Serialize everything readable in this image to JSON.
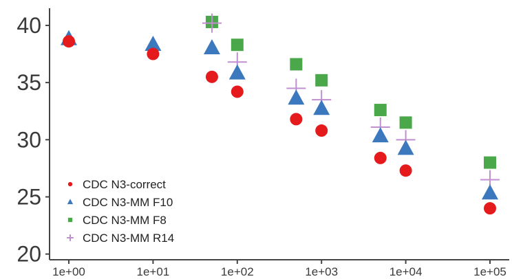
{
  "chart_data": {
    "type": "scatter",
    "x_scale": "log10",
    "xlim": [
      1,
      100000
    ],
    "ylim": [
      19.5,
      41.5
    ],
    "x_ticks": [
      {
        "value": 1,
        "label": "1e+00"
      },
      {
        "value": 10,
        "label": "1e+01"
      },
      {
        "value": 100,
        "label": "1e+02"
      },
      {
        "value": 1000,
        "label": "1e+03"
      },
      {
        "value": 10000,
        "label": "1e+04"
      },
      {
        "value": 100000,
        "label": "1e+05"
      }
    ],
    "y_ticks": [
      {
        "value": 20,
        "label": "20"
      },
      {
        "value": 25,
        "label": "25"
      },
      {
        "value": 30,
        "label": "30"
      },
      {
        "value": 35,
        "label": "35"
      },
      {
        "value": 40,
        "label": "40"
      }
    ],
    "grid": false,
    "legend_position": "bottom-left",
    "series": [
      {
        "name": "CDC N3-correct",
        "marker": "circle",
        "color": "#e41a1c",
        "points": [
          {
            "x": 1,
            "y": 38.6
          },
          {
            "x": 10,
            "y": 37.5
          },
          {
            "x": 50,
            "y": 35.5
          },
          {
            "x": 100,
            "y": 34.2
          },
          {
            "x": 500,
            "y": 31.8
          },
          {
            "x": 1000,
            "y": 30.8
          },
          {
            "x": 5000,
            "y": 28.4
          },
          {
            "x": 10000,
            "y": 27.3
          },
          {
            "x": 100000,
            "y": 24.0
          }
        ]
      },
      {
        "name": "CDC N3-MM F10",
        "marker": "triangle",
        "color": "#3b78bd",
        "points": [
          {
            "x": 1,
            "y": 38.8
          },
          {
            "x": 10,
            "y": 38.3
          },
          {
            "x": 50,
            "y": 38.0
          },
          {
            "x": 100,
            "y": 35.8
          },
          {
            "x": 500,
            "y": 33.6
          },
          {
            "x": 1000,
            "y": 32.7
          },
          {
            "x": 5000,
            "y": 30.3
          },
          {
            "x": 10000,
            "y": 29.2
          },
          {
            "x": 100000,
            "y": 25.3
          }
        ]
      },
      {
        "name": "CDC N3-MM F8",
        "marker": "square",
        "color": "#4aa84a",
        "points": [
          {
            "x": 50,
            "y": 40.3
          },
          {
            "x": 100,
            "y": 38.3
          },
          {
            "x": 500,
            "y": 36.6
          },
          {
            "x": 1000,
            "y": 35.2
          },
          {
            "x": 5000,
            "y": 32.6
          },
          {
            "x": 10000,
            "y": 31.5
          },
          {
            "x": 100000,
            "y": 28.0
          }
        ]
      },
      {
        "name": "CDC N3-MM R14",
        "marker": "plus",
        "color": "#c08fcf",
        "points": [
          {
            "x": 50,
            "y": 40.2
          },
          {
            "x": 100,
            "y": 36.8
          },
          {
            "x": 500,
            "y": 34.5
          },
          {
            "x": 1000,
            "y": 33.5
          },
          {
            "x": 5000,
            "y": 31.1
          },
          {
            "x": 10000,
            "y": 30.0
          },
          {
            "x": 100000,
            "y": 26.5
          }
        ]
      }
    ]
  }
}
